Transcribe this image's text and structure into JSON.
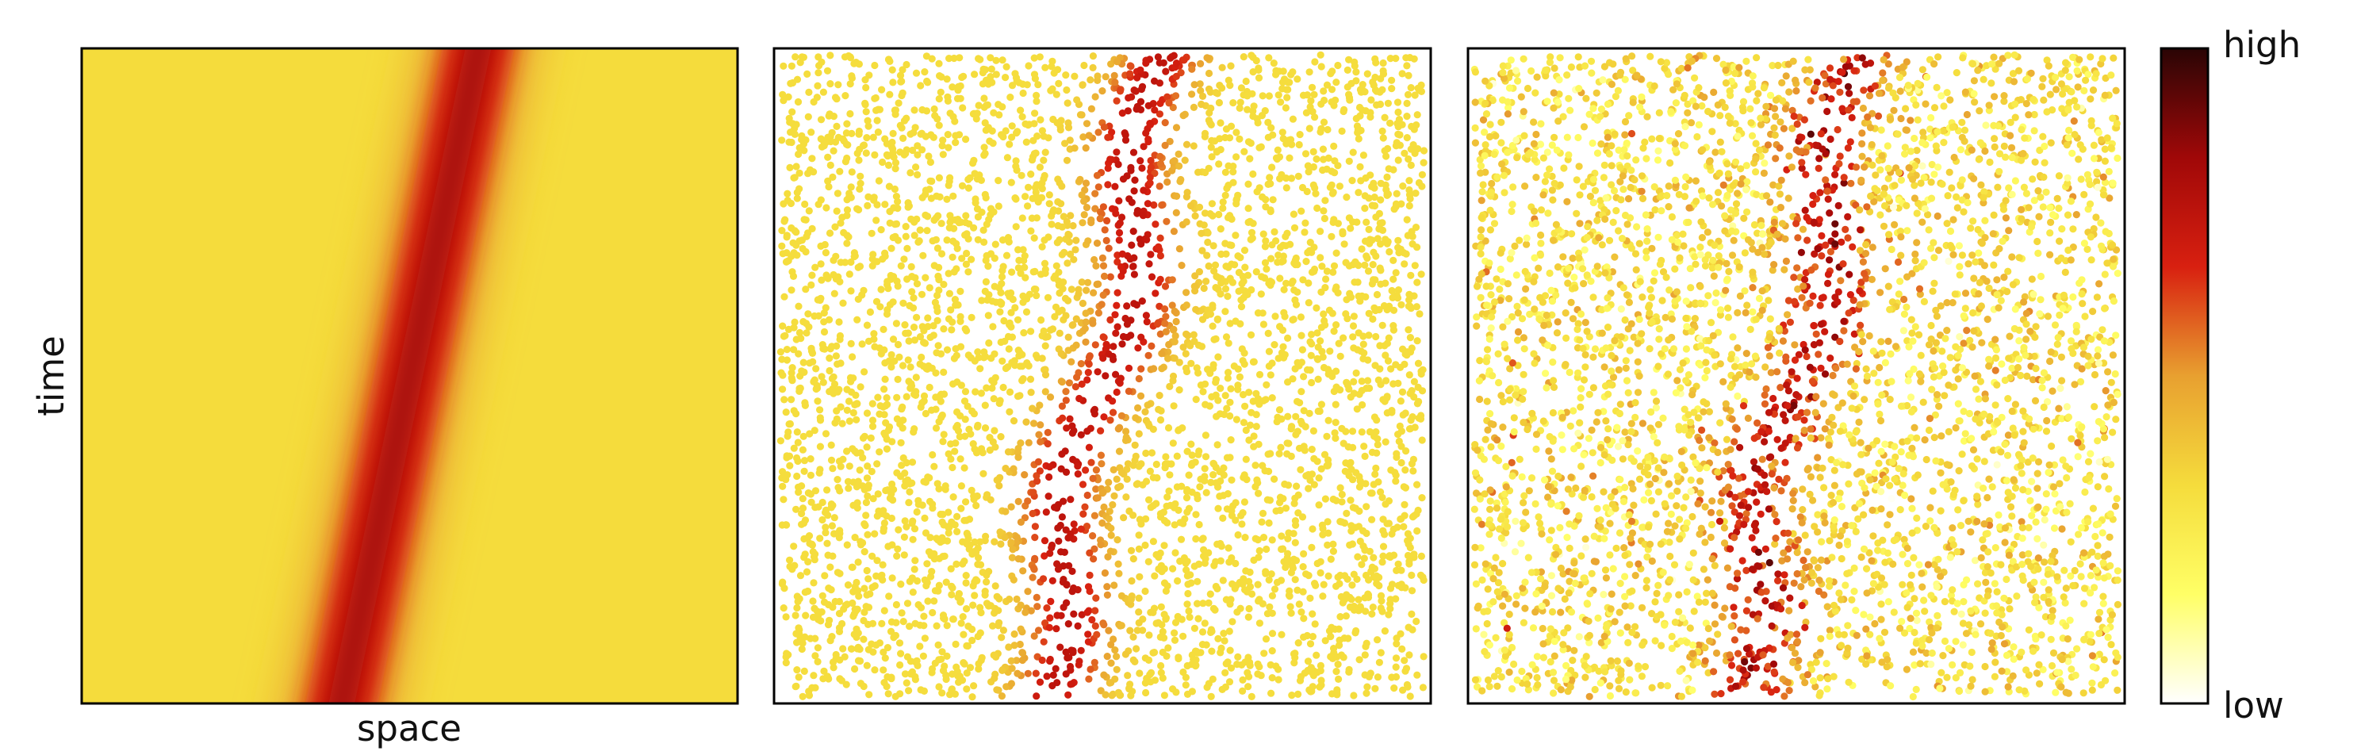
{
  "chart_data": {
    "type": "heatmap-scatter",
    "xlabel": "space",
    "ylabel": "time",
    "colorbar": {
      "colors": [
        "#ffffff",
        "#ffff66",
        "#f5dc3c",
        "#e8a030",
        "#d82010",
        "#a00808",
        "#2a0505"
      ],
      "high": "high",
      "low": "low"
    }
  }
}
